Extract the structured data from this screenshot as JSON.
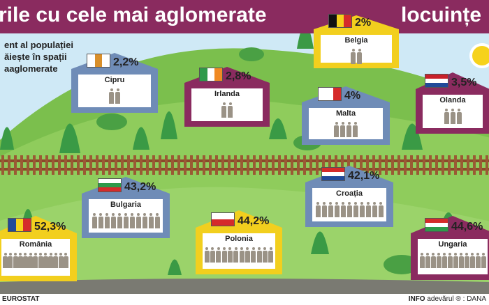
{
  "title": {
    "left": "rile cu cele mai aglomerate",
    "right": "locuințe"
  },
  "subtitle": [
    "ent al populației",
    "ăiește în spații",
    "aaglomerate"
  ],
  "houses": [
    {
      "country": "Belgia",
      "pct": "2%",
      "color": "#f2cf1e",
      "flag": [
        "#111111",
        "#f6d21c",
        "#d52b2b"
      ]
    },
    {
      "country": "Cipru",
      "pct": "2,2%",
      "color": "#6f8cb7",
      "flag": [
        "#ffffff",
        "#d98f2a",
        "#ffffff"
      ]
    },
    {
      "country": "Irlanda",
      "pct": "2,8%",
      "color": "#8a2b5f",
      "flag": [
        "#2e9a4a",
        "#ffffff",
        "#f08a24"
      ]
    },
    {
      "country": "Malta",
      "pct": "4%",
      "color": "#6f8cb7",
      "flag": [
        "#ffffff",
        "#ffffff",
        "#d52b2b"
      ]
    },
    {
      "country": "Olanda",
      "pct": "3,5%",
      "color": "#8a2b5f",
      "flag": [
        "#c8202a",
        "#ffffff",
        "#214a99"
      ]
    },
    {
      "country": "Bulgaria",
      "pct": "43,2%",
      "color": "#6f8cb7",
      "flag": [
        "#ffffff",
        "#2e9a4a",
        "#d52b2b"
      ]
    },
    {
      "country": "Croația",
      "pct": "42,1%",
      "color": "#6f8cb7",
      "flag": [
        "#d52b2b",
        "#ffffff",
        "#214a99"
      ]
    },
    {
      "country": "România",
      "pct": "52,3%",
      "color": "#f2cf1e",
      "flag": [
        "#214a99",
        "#f6d21c",
        "#d52b2b"
      ]
    },
    {
      "country": "Polonia",
      "pct": "44,2%",
      "color": "#f2cf1e",
      "flag": [
        "#ffffff",
        "#d52b2b"
      ]
    },
    {
      "country": "Ungaria",
      "pct": "44,6%",
      "color": "#8a2b5f",
      "flag": [
        "#d52b2b",
        "#ffffff",
        "#2e9a4a"
      ]
    }
  ],
  "footer": {
    "source": "EUROSTAT",
    "credit_prefix": "INFO",
    "credit_brand": "adevărul ®",
    "credit_author": ": DANA"
  }
}
